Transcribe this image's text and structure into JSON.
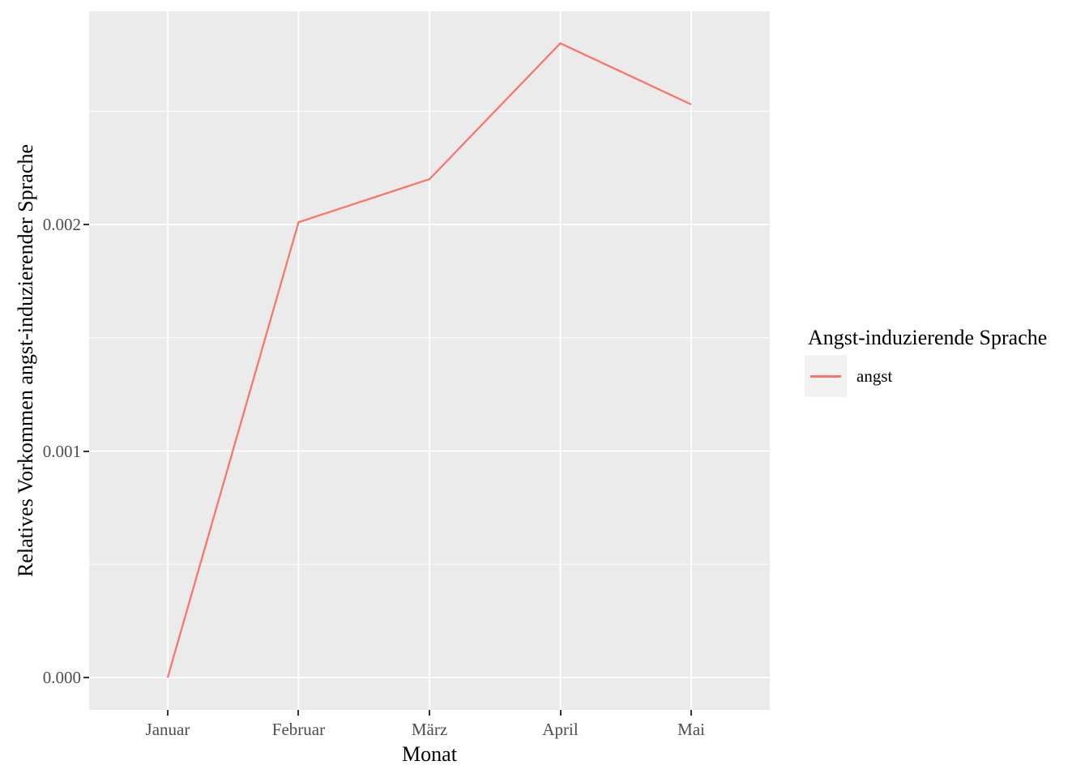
{
  "chart_data": {
    "type": "line",
    "title": "",
    "xlabel": "Monat",
    "ylabel": "Relatives Vorkommen angst-induzierender Sprache",
    "categories": [
      "Januar",
      "Februar",
      "März",
      "April",
      "Mai"
    ],
    "series": [
      {
        "name": "angst",
        "color": "#F8766D",
        "values": [
          0.0,
          0.00201,
          0.0022,
          0.0028,
          0.00253
        ]
      }
    ],
    "ylim": [
      -0.000143,
      0.002941
    ],
    "yaxis": {
      "ticks": [
        {
          "label": "0.000",
          "value": 0.0
        },
        {
          "label": "0.001",
          "value": 0.001
        },
        {
          "label": "0.002",
          "value": 0.002
        }
      ],
      "minor_gridlines": [
        0.0005,
        0.0015,
        0.0025
      ]
    },
    "grid": "major-and-minor-horizontal-white, major-vertical-per-category",
    "legend": {
      "position": "right-center",
      "title": "Angst-induzierende Sprache",
      "items": [
        {
          "label": "angst",
          "color": "#F8766D"
        }
      ]
    },
    "colors": {
      "panel_background": "#EBEBEB",
      "gridline": "#FFFFFF",
      "tick_label": "#4D4D4D",
      "tick_mark": "#333333",
      "title_text": "#000000",
      "legend_key_background": "#F2F2F2"
    }
  }
}
